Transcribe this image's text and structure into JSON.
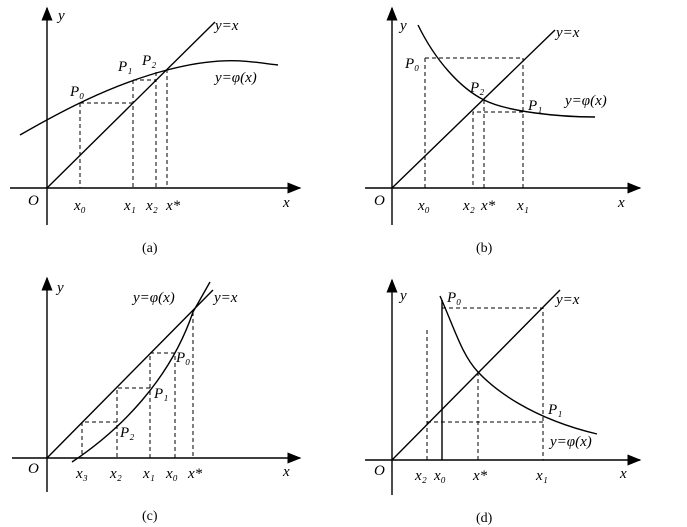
{
  "panels": [
    {
      "caption": "(a)",
      "y_axis": "y",
      "x_axis": "x",
      "origin": "O",
      "line": "y=x",
      "curve": "y=φ(x)",
      "points": [
        "P₀",
        "P₁",
        "P₂"
      ],
      "x_ticks": [
        "x₀",
        "x₁",
        "x₂",
        "x*"
      ]
    },
    {
      "caption": "(b)",
      "y_axis": "y",
      "x_axis": "x",
      "origin": "O",
      "line": "y=x",
      "curve": "y=φ(x)",
      "points": [
        "P₀",
        "P₂",
        "P₁"
      ],
      "x_ticks": [
        "x₀",
        "x₂",
        "x*",
        "x₁"
      ]
    },
    {
      "caption": "(c)",
      "y_axis": "y",
      "x_axis": "x",
      "origin": "O",
      "line": "y=x",
      "curve": "y=φ(x)",
      "points": [
        "P₀",
        "P₁",
        "P₂"
      ],
      "x_ticks": [
        "x₃",
        "x₂",
        "x₁",
        "x₀",
        "x*"
      ]
    },
    {
      "caption": "(d)",
      "y_axis": "y",
      "x_axis": "x",
      "origin": "O",
      "line": "y=x",
      "curve": "y=φ(x)",
      "points": [
        "P₀",
        "P₁"
      ],
      "x_ticks": [
        "x₂",
        "x₀",
        "x*",
        "x₁"
      ]
    }
  ]
}
